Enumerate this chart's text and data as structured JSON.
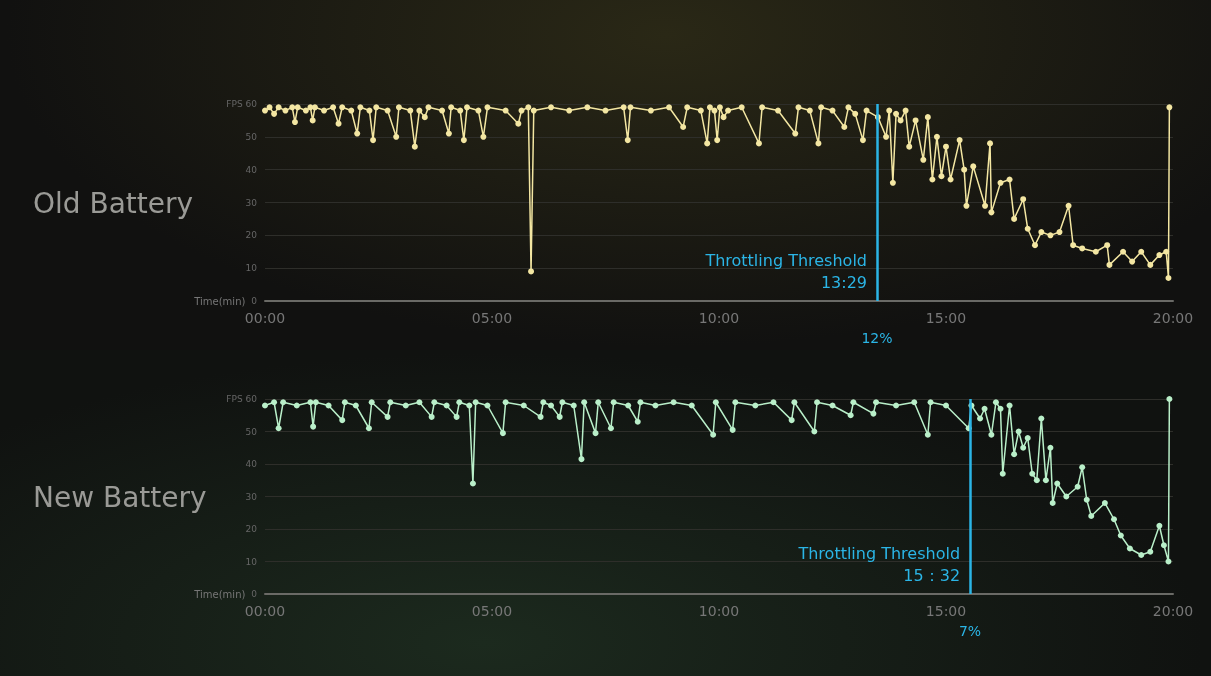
{
  "chart_data": [
    {
      "type": "line",
      "title": "Old Battery",
      "xlabel": "Time(min)",
      "color": "#f3e6a2",
      "marker": "circle",
      "grid": "y",
      "x": [
        0,
        0.1,
        0.2,
        0.3,
        0.45,
        0.6,
        0.66,
        0.72,
        0.9,
        1.0,
        1.05,
        1.1,
        1.3,
        1.5,
        1.62,
        1.7,
        1.9,
        2.03,
        2.1,
        2.3,
        2.38,
        2.45,
        2.7,
        2.89,
        2.95,
        3.2,
        3.3,
        3.4,
        3.52,
        3.6,
        3.9,
        4.05,
        4.1,
        4.3,
        4.38,
        4.45,
        4.7,
        4.81,
        4.9,
        5.3,
        5.58,
        5.65,
        5.8,
        5.86,
        5.92,
        6.3,
        6.7,
        7.1,
        7.5,
        7.9,
        7.99,
        8.05,
        8.5,
        8.9,
        9.21,
        9.3,
        9.6,
        9.74,
        9.8,
        9.9,
        9.96,
        10.02,
        10.1,
        10.2,
        10.5,
        10.88,
        10.95,
        11.3,
        11.68,
        11.75,
        12.0,
        12.19,
        12.25,
        12.5,
        12.76,
        12.85,
        13.0,
        13.17,
        13.25,
        13.5,
        13.68,
        13.75,
        13.83,
        13.9,
        14.0,
        14.11,
        14.19,
        14.33,
        14.5,
        14.6,
        14.7,
        14.8,
        14.9,
        15.0,
        15.1,
        15.3,
        15.4,
        15.45,
        15.6,
        15.86,
        15.97,
        16.0,
        16.2,
        16.4,
        16.5,
        16.7,
        16.8,
        16.96,
        17.1,
        17.3,
        17.5,
        17.7,
        17.8,
        18.0,
        18.3,
        18.55,
        18.6,
        18.9,
        19.1,
        19.3,
        19.5,
        19.7,
        19.85,
        19.9,
        19.92
      ],
      "values": [
        58,
        59,
        57,
        59,
        58,
        59,
        54.5,
        59,
        58,
        59,
        55,
        59,
        58,
        59,
        54,
        59,
        58,
        51,
        59,
        58,
        49,
        59,
        58,
        50,
        59,
        58,
        47,
        58,
        56,
        59,
        58,
        51,
        59,
        58,
        49,
        59,
        58,
        50,
        59,
        58,
        54,
        58,
        59,
        9,
        58,
        59,
        58,
        59,
        58,
        59,
        49,
        59,
        58,
        59,
        53,
        59,
        58,
        48,
        59,
        58,
        49,
        59,
        56,
        58,
        59,
        48,
        59,
        58,
        51,
        59,
        58,
        48,
        59,
        58,
        53,
        59,
        57,
        49,
        58,
        56,
        50,
        58,
        36,
        57,
        55,
        58,
        47,
        55,
        43,
        56,
        37,
        50,
        38,
        47,
        37,
        49,
        40,
        29,
        41,
        29,
        48,
        27,
        36,
        37,
        25,
        31,
        22,
        17,
        21,
        20,
        21,
        29,
        17,
        16,
        15,
        17,
        11,
        15,
        12,
        15,
        11,
        14,
        15,
        7,
        59
      ],
      "xlim": [
        0,
        20
      ],
      "xticks": [
        {
          "value": 0,
          "label": "00:00"
        },
        {
          "value": 5,
          "label": "05:00"
        },
        {
          "value": 10,
          "label": "10:00"
        },
        {
          "value": 15,
          "label": "15:00"
        },
        {
          "value": 20,
          "label": "20:00"
        }
      ],
      "ylim": [
        0,
        60
      ],
      "yticks": [
        0,
        10,
        20,
        30,
        40,
        50,
        {
          "value": 60,
          "label": "FPS 60"
        }
      ],
      "ref_lines": [
        {
          "axis": "x",
          "value": 13.48,
          "label": "Throttling Threshold\n13:29",
          "color": "#2bb5e6"
        }
      ],
      "annotations": [
        {
          "text": "12%",
          "x": 13.48,
          "y": 0
        }
      ]
    },
    {
      "type": "line",
      "title": "New Battery",
      "xlabel": "Time(min)",
      "color": "#b9efc9",
      "marker": "circle",
      "grid": "y",
      "x": [
        0,
        0.2,
        0.3,
        0.4,
        0.7,
        1.0,
        1.06,
        1.12,
        1.4,
        1.7,
        1.76,
        2.0,
        2.29,
        2.35,
        2.7,
        2.76,
        3.1,
        3.4,
        3.67,
        3.73,
        4.0,
        4.22,
        4.28,
        4.5,
        4.58,
        4.64,
        4.9,
        5.24,
        5.3,
        5.7,
        6.07,
        6.13,
        6.3,
        6.49,
        6.55,
        6.8,
        6.97,
        7.03,
        7.28,
        7.34,
        7.62,
        7.68,
        8.0,
        8.21,
        8.27,
        8.6,
        9.0,
        9.4,
        9.87,
        9.93,
        10.3,
        10.36,
        10.8,
        11.2,
        11.6,
        11.66,
        12.1,
        12.16,
        12.5,
        12.9,
        12.96,
        13.4,
        13.46,
        13.9,
        14.3,
        14.6,
        14.66,
        15.0,
        15.5,
        15.56,
        15.75,
        15.85,
        16.0,
        16.1,
        16.2,
        16.25,
        16.4,
        16.5,
        16.6,
        16.7,
        16.8,
        16.9,
        17.0,
        17.1,
        17.2,
        17.3,
        17.35,
        17.45,
        17.65,
        17.9,
        18.0,
        18.1,
        18.2,
        18.5,
        18.7,
        18.85,
        19.05,
        19.3,
        19.5,
        19.7,
        19.8,
        19.9,
        19.92
      ],
      "values": [
        58,
        59,
        51,
        59,
        58,
        59,
        51.5,
        59,
        58,
        53.5,
        59,
        58,
        51,
        59,
        54.5,
        59,
        58,
        59,
        54.5,
        59,
        58,
        54.5,
        59,
        58,
        34,
        59,
        58,
        49.5,
        59,
        58,
        54.5,
        59,
        58,
        54.5,
        59,
        58,
        41.5,
        59,
        49.5,
        59,
        51,
        59,
        58,
        53,
        59,
        58,
        59,
        58,
        49,
        59,
        50.5,
        59,
        58,
        59,
        53.5,
        59,
        50,
        59,
        58,
        55,
        59,
        55.5,
        59,
        58,
        59,
        49,
        59,
        58,
        51,
        58,
        54,
        57,
        49,
        59,
        57,
        37,
        58,
        43,
        50,
        45,
        48,
        37,
        35,
        54,
        35,
        45,
        28,
        34,
        30,
        33,
        39,
        29,
        24,
        28,
        23,
        18,
        14,
        12,
        13,
        21,
        15,
        10,
        60
      ],
      "xlim": [
        0,
        20
      ],
      "xticks": [
        {
          "value": 0,
          "label": "00:00"
        },
        {
          "value": 5,
          "label": "05:00"
        },
        {
          "value": 10,
          "label": "10:00"
        },
        {
          "value": 15,
          "label": "15:00"
        },
        {
          "value": 20,
          "label": "20:00"
        }
      ],
      "ylim": [
        0,
        60
      ],
      "yticks": [
        0,
        10,
        20,
        30,
        40,
        50,
        {
          "value": 60,
          "label": "FPS 60"
        }
      ],
      "ref_lines": [
        {
          "axis": "x",
          "value": 15.53,
          "label": "Throttling Threshold\n15：32",
          "color": "#2bb5e6"
        }
      ],
      "annotations": [
        {
          "text": "7%",
          "x": 15.53,
          "y": 0
        }
      ]
    }
  ]
}
